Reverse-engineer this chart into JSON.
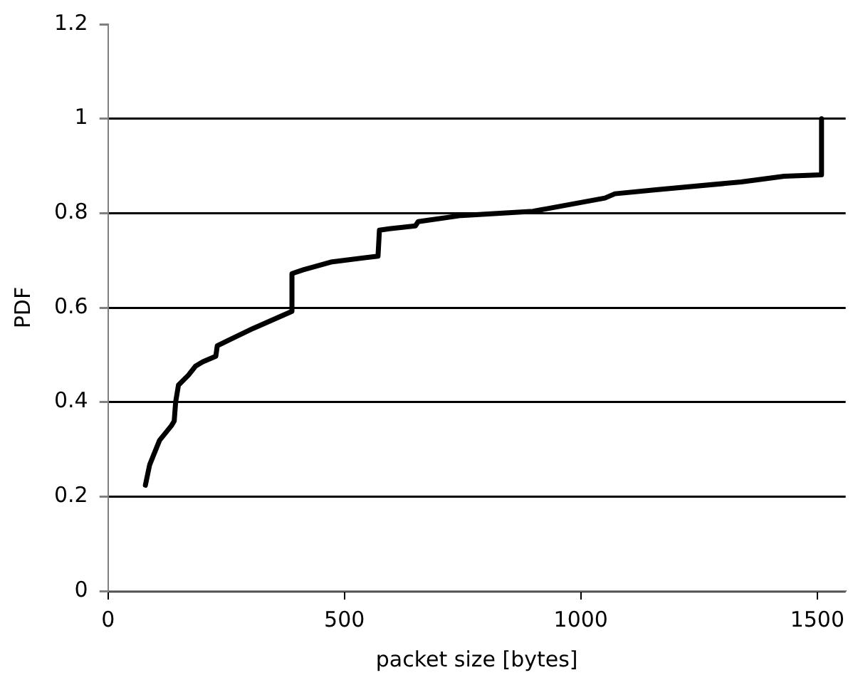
{
  "chart_data": {
    "type": "line",
    "xlabel": "packet size [bytes]",
    "ylabel": "PDF",
    "xlim": [
      0,
      1560
    ],
    "xticks": [
      0,
      500,
      1000,
      1500
    ],
    "ylim": [
      0,
      1.2
    ],
    "yticks": [
      0,
      0.2,
      0.4,
      0.6,
      0.8,
      1,
      1.2
    ],
    "grid": "y",
    "marker": "none",
    "line_style": "solid",
    "series": [
      {
        "color": "#000000",
        "x": [
          79,
          88,
          109,
          134,
          140,
          143,
          149,
          170,
          185,
          200,
          228,
          231,
          261,
          307,
          389,
          389,
          413,
          474,
          571,
          574,
          595,
          650,
          656,
          747,
          899,
          1051,
          1072,
          1163,
          1339,
          1430,
          1509,
          1509
        ],
        "values": [
          0.224,
          0.267,
          0.319,
          0.35,
          0.36,
          0.4,
          0.436,
          0.457,
          0.476,
          0.485,
          0.497,
          0.519,
          0.534,
          0.556,
          0.592,
          0.672,
          0.68,
          0.697,
          0.709,
          0.764,
          0.767,
          0.773,
          0.782,
          0.795,
          0.804,
          0.832,
          0.841,
          0.85,
          0.866,
          0.878,
          0.881,
          1.0
        ]
      }
    ]
  }
}
